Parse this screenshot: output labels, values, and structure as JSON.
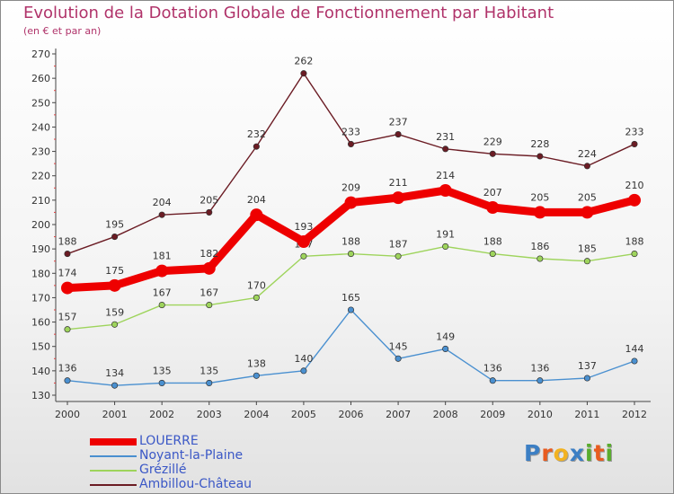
{
  "header": {
    "title": "Evolution de la Dotation Globale de Fonctionnement par Habitant",
    "subtitle": "(en € et par an)"
  },
  "logo": {
    "text": "Proxiti",
    "letter_colors": [
      "#3c7fc4",
      "#e85b1f",
      "#f2b220",
      "#3c7fc4",
      "#5aac2e",
      "#e85b1f",
      "#5aac2e"
    ]
  },
  "chart_data": {
    "type": "line",
    "x": [
      "2000",
      "2001",
      "2002",
      "2003",
      "2004",
      "2005",
      "2006",
      "2007",
      "2008",
      "2009",
      "2010",
      "2011",
      "2012"
    ],
    "ylim": [
      130,
      270
    ],
    "yticks": [
      130,
      140,
      150,
      160,
      170,
      180,
      190,
      200,
      210,
      220,
      230,
      240,
      250,
      260,
      270
    ],
    "grid": false,
    "legend_position": "bottom-left",
    "series": [
      {
        "name": "Ambillou-Château",
        "color": "#6b1c24",
        "emphasis": false,
        "values": [
          188,
          195,
          204,
          205,
          232,
          262,
          233,
          237,
          231,
          229,
          228,
          224,
          233
        ]
      },
      {
        "name": "Grézillé",
        "color": "#9ed45c",
        "emphasis": false,
        "values": [
          157,
          159,
          167,
          167,
          170,
          187,
          188,
          187,
          191,
          188,
          186,
          185,
          188
        ]
      },
      {
        "name": "Noyant-la-Plaine",
        "color": "#4a90d0",
        "emphasis": false,
        "values": [
          136,
          134,
          135,
          135,
          138,
          140,
          165,
          145,
          149,
          136,
          136,
          137,
          144
        ]
      },
      {
        "name": "LOUERRE",
        "color": "#ee0000",
        "emphasis": true,
        "values": [
          174,
          175,
          181,
          182,
          204,
          193,
          209,
          211,
          214,
          207,
          205,
          205,
          210
        ]
      }
    ],
    "legend_order": [
      "LOUERRE",
      "Noyant-la-Plaine",
      "Grézillé",
      "Ambillou-Château"
    ]
  }
}
